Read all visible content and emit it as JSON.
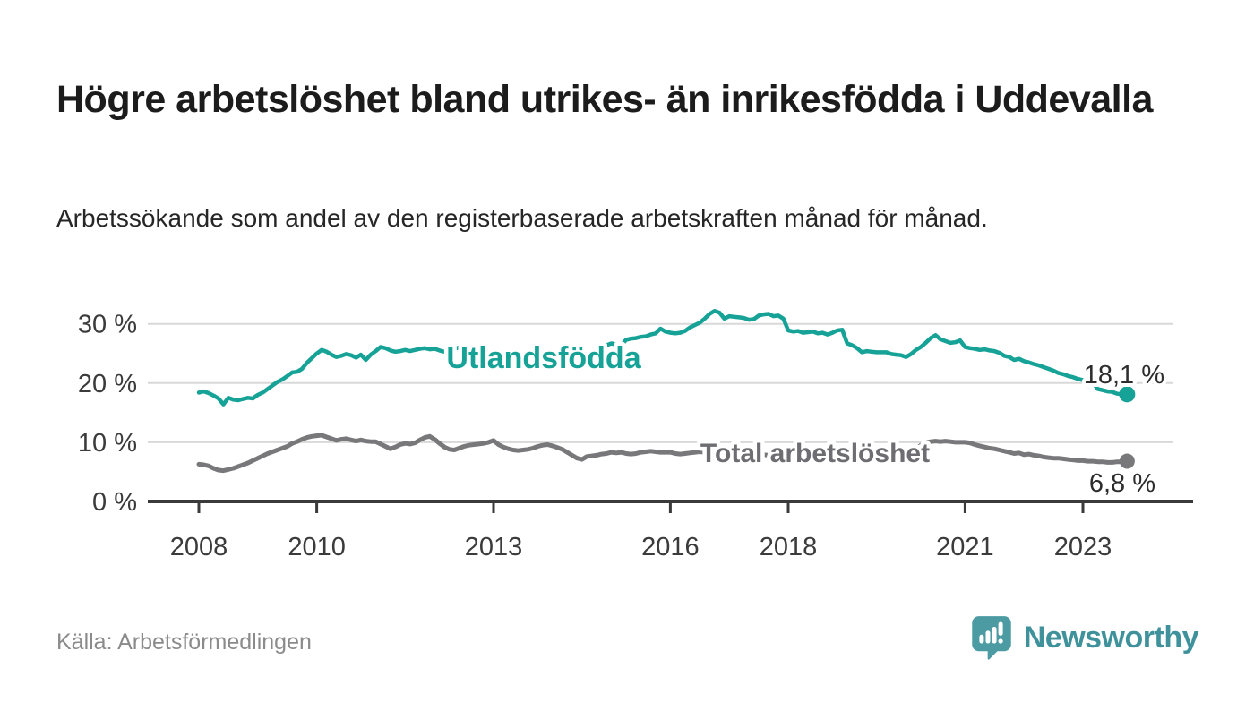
{
  "header": {
    "title": "Högre arbetslöshet bland utrikes- än inrikesfödda i Uddevalla",
    "subtitle": "Arbetssökande som andel av den registerbaserade arbetskraften månad för månad."
  },
  "footer": {
    "source": "Källa: Arbetsförmedlingen",
    "brand": "Newsworthy"
  },
  "colors": {
    "foreign_born_line": "#16a296",
    "total_line": "#78787a",
    "total_label": "#6d6d72",
    "axis": "#3a3a3a",
    "tick_text": "#3b3b3b",
    "gridline": "#d8d8d8",
    "value_label": "#2d2d2d",
    "logo_teal": "#4c9ba3",
    "brand_text": "#3f929b"
  },
  "chart_data": {
    "type": "line",
    "title": "Högre arbetslöshet bland utrikes- än inrikesfödda i Uddevalla",
    "subtitle": "Arbetssökande som andel av den registerbaserade arbetskraften månad för månad.",
    "unit": "%",
    "x_interval": "month",
    "x_start": "2008-01",
    "x_end": "2023-10",
    "x_tick_years": [
      2008,
      2010,
      2013,
      2016,
      2018,
      2021,
      2023
    ],
    "x_tick_labels": [
      "2008",
      "2010",
      "2013",
      "2016",
      "2018",
      "2021",
      "2023"
    ],
    "y_ticks": [
      0,
      10,
      20,
      30
    ],
    "y_tick_labels": [
      "0 %",
      "10 %",
      "20 %",
      "30 %"
    ],
    "ylim": [
      0,
      34
    ],
    "grid": "horizontal",
    "legend_position": "inline-on-line",
    "series": [
      {
        "name": "Utlandsfödda",
        "end_label": "18,1 %",
        "last_value": 18.1,
        "values": [
          18.4,
          18.6,
          18.3,
          17.9,
          17.4,
          16.4,
          17.5,
          17.2,
          17.1,
          17.3,
          17.5,
          17.4,
          18.0,
          18.4,
          19.0,
          19.6,
          20.2,
          20.6,
          21.2,
          21.8,
          21.9,
          22.4,
          23.4,
          24.2,
          25.0,
          25.6,
          25.3,
          24.8,
          24.4,
          24.6,
          24.9,
          24.7,
          24.3,
          24.8,
          23.9,
          24.8,
          25.4,
          26.1,
          25.9,
          25.5,
          25.3,
          25.4,
          25.6,
          25.4,
          25.6,
          25.8,
          25.9,
          25.7,
          25.8,
          25.5,
          25.3,
          25.6,
          25.8,
          26.0,
          25.7,
          25.5,
          25.4,
          25.6,
          25.3,
          25.2,
          25.4,
          25.1,
          25.0,
          25.2,
          25.0,
          24.8,
          25.0,
          24.9,
          25.1,
          24.9,
          24.8,
          24.9,
          25.0,
          24.8,
          24.7,
          24.9,
          24.8,
          24.6,
          24.8,
          24.9,
          25.0,
          25.2,
          26.0,
          26.4,
          26.7,
          26.5,
          26.4,
          27.3,
          27.5,
          27.6,
          27.8,
          27.9,
          28.2,
          28.4,
          29.2,
          28.7,
          28.5,
          28.4,
          28.5,
          28.8,
          29.4,
          29.8,
          30.2,
          30.9,
          31.7,
          32.2,
          31.9,
          30.9,
          31.3,
          31.2,
          31.1,
          31.0,
          30.7,
          30.8,
          31.4,
          31.6,
          31.7,
          31.3,
          31.4,
          30.9,
          28.9,
          28.7,
          28.8,
          28.5,
          28.6,
          28.7,
          28.4,
          28.5,
          28.2,
          28.5,
          28.9,
          29.0,
          26.7,
          26.4,
          25.9,
          25.2,
          25.4,
          25.3,
          25.2,
          25.2,
          25.2,
          24.9,
          24.8,
          24.7,
          24.4,
          24.9,
          25.6,
          26.1,
          26.8,
          27.6,
          28.1,
          27.4,
          27.1,
          26.8,
          26.9,
          27.2,
          26.1,
          25.9,
          25.8,
          25.6,
          25.7,
          25.5,
          25.4,
          25.1,
          24.6,
          24.4,
          23.9,
          24.1,
          23.7,
          23.5,
          23.2,
          23.0,
          22.7,
          22.4,
          22.1,
          21.7,
          21.5,
          21.2,
          21.0,
          20.7,
          20.5,
          19.7,
          20.1,
          19.0,
          18.8,
          18.6,
          18.5,
          18.2,
          18.1,
          18.1
        ]
      },
      {
        "name": "Total arbetslöshet",
        "end_label": "6,8 %",
        "last_value": 6.8,
        "values": [
          6.3,
          6.2,
          6.0,
          5.6,
          5.3,
          5.2,
          5.4,
          5.6,
          5.9,
          6.2,
          6.5,
          6.9,
          7.3,
          7.7,
          8.1,
          8.4,
          8.7,
          9.0,
          9.3,
          9.8,
          10.1,
          10.5,
          10.8,
          11.0,
          11.1,
          11.2,
          10.9,
          10.6,
          10.3,
          10.5,
          10.6,
          10.4,
          10.2,
          10.4,
          10.2,
          10.1,
          10.1,
          9.7,
          9.3,
          8.9,
          9.2,
          9.6,
          9.8,
          9.7,
          9.9,
          10.4,
          10.8,
          11.0,
          10.5,
          9.8,
          9.2,
          8.8,
          8.7,
          9.0,
          9.3,
          9.5,
          9.6,
          9.7,
          9.8,
          10.0,
          10.3,
          9.6,
          9.2,
          8.9,
          8.7,
          8.6,
          8.7,
          8.8,
          9.0,
          9.3,
          9.5,
          9.6,
          9.4,
          9.1,
          8.8,
          8.3,
          7.8,
          7.3,
          7.1,
          7.6,
          7.7,
          7.8,
          8.0,
          8.1,
          8.3,
          8.2,
          8.3,
          8.1,
          8.0,
          8.1,
          8.3,
          8.4,
          8.5,
          8.4,
          8.3,
          8.3,
          8.3,
          8.1,
          8.0,
          8.1,
          8.2,
          8.3,
          8.4,
          8.3,
          8.2,
          8.1,
          8.1,
          8.0,
          8.0,
          7.9,
          7.9,
          8.0,
          8.1,
          8.0,
          7.9,
          7.9,
          7.8,
          7.9,
          8.0,
          7.9,
          7.9,
          7.8,
          7.7,
          7.8,
          7.9,
          7.8,
          7.7,
          7.8,
          7.9,
          7.8,
          7.9,
          8.0,
          8.0,
          7.9,
          7.8,
          7.9,
          8.0,
          8.1,
          8.0,
          8.1,
          8.2,
          8.2,
          8.3,
          8.3,
          8.4,
          8.5,
          8.9,
          9.5,
          9.9,
          10.1,
          10.2,
          10.1,
          10.2,
          10.1,
          10.0,
          10.0,
          10.0,
          9.9,
          9.6,
          9.4,
          9.2,
          9.0,
          8.9,
          8.7,
          8.5,
          8.3,
          8.1,
          8.2,
          7.9,
          8.0,
          7.8,
          7.7,
          7.5,
          7.4,
          7.3,
          7.3,
          7.2,
          7.1,
          7.0,
          6.9,
          6.9,
          6.8,
          6.8,
          6.7,
          6.7,
          6.6,
          6.6,
          6.7,
          6.7,
          6.8
        ]
      }
    ]
  }
}
